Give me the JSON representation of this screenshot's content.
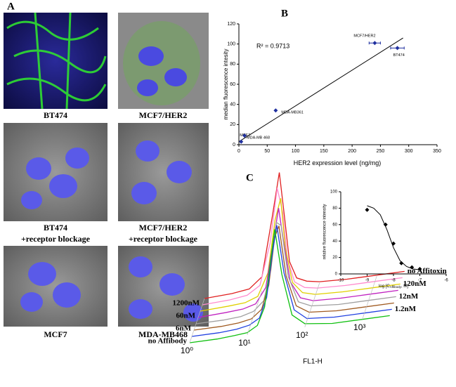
{
  "panel_labels": [
    "A",
    "B",
    "C"
  ],
  "images": [
    {
      "caption": [
        "BT474"
      ]
    },
    {
      "caption": [
        "MCF7/HER2"
      ]
    },
    {
      "caption": [
        "BT474",
        "+receptor blockage"
      ]
    },
    {
      "caption": [
        "MCF7/HER2",
        "+receptor blockage"
      ]
    },
    {
      "caption": [
        "MCF7"
      ]
    },
    {
      "caption": [
        "MDA-MB468"
      ]
    }
  ],
  "chart_data": [
    {
      "type": "scatter",
      "xlabel": "HER2 expression level (ng/mg)",
      "ylabel": "median fluorescence intesity",
      "annotation": "R² = 0.9713",
      "xlim": [
        0,
        350
      ],
      "xticks": [
        0,
        50,
        100,
        150,
        200,
        250,
        300,
        350
      ],
      "ylim": [
        0,
        120
      ],
      "yticks": [
        0,
        20,
        40,
        60,
        80,
        100,
        120
      ],
      "series": [
        {
          "color": "#1f2f9f",
          "x": [
            4,
            10,
            65,
            240,
            280
          ],
          "values": [
            3,
            9,
            34,
            101,
            96
          ],
          "xerr": [
            null,
            null,
            null,
            10,
            12
          ],
          "point_labels": [
            "MCF7",
            "MDA-MB 468",
            "MDA-MB361",
            "MCF7/HER2",
            "BT474"
          ]
        }
      ],
      "fit": {
        "color": "#000000",
        "x": [
          0,
          290
        ],
        "values": [
          3,
          106
        ]
      }
    },
    {
      "type": "line",
      "xlabel": "FL1-H",
      "xlog": true,
      "xlim": [
        1,
        4000
      ],
      "xticks": [
        {
          "value": 1,
          "label": "10⁰"
        },
        {
          "value": 10,
          "label": "10¹"
        },
        {
          "value": 100,
          "label": "10²"
        },
        {
          "value": 1000,
          "label": "10³"
        }
      ],
      "ylim": [
        0,
        100
      ],
      "x": [
        1,
        3,
        6,
        10,
        15,
        20,
        25,
        30,
        40,
        60,
        100,
        300,
        1000,
        3000
      ],
      "series": [
        {
          "name": "no Affitoxin",
          "color": "#e02020",
          "values": [
            0,
            1,
            3,
            12,
            62,
            100,
            58,
            22,
            7,
            3,
            1,
            0,
            0,
            0
          ]
        },
        {
          "name": "1200nM",
          "color": "#ff8ccf",
          "values": [
            0,
            1,
            3,
            10,
            45,
            92,
            70,
            30,
            9,
            3,
            1,
            0,
            0,
            0
          ]
        },
        {
          "name": "120nM",
          "color": "#e0d000",
          "values": [
            0,
            1,
            2,
            6,
            25,
            70,
            88,
            45,
            14,
            4,
            1,
            0,
            0,
            0
          ]
        },
        {
          "name": "60nM",
          "color": "#c020c0",
          "values": [
            0,
            1,
            2,
            5,
            18,
            55,
            85,
            58,
            20,
            5,
            1,
            0,
            0,
            0
          ]
        },
        {
          "name": "12nM",
          "color": "#a0a0a0",
          "values": [
            0,
            0,
            1,
            4,
            12,
            38,
            78,
            75,
            30,
            7,
            2,
            0,
            0,
            0
          ]
        },
        {
          "name": "6nM",
          "color": "#a05a20",
          "values": [
            0,
            0,
            1,
            3,
            10,
            30,
            70,
            80,
            36,
            9,
            2,
            0,
            0,
            0
          ]
        },
        {
          "name": "1.2nM",
          "color": "#2040e0",
          "values": [
            0,
            0,
            1,
            3,
            8,
            25,
            62,
            86,
            44,
            11,
            2,
            0,
            0,
            0
          ]
        },
        {
          "name": "no Affibody",
          "color": "#10c010",
          "values": [
            0,
            0,
            1,
            2,
            7,
            22,
            58,
            88,
            48,
            12,
            3,
            0,
            0,
            0
          ]
        }
      ]
    },
    {
      "type": "scatter",
      "xlabel": "log [C",
      "xlabel_sub": "Affibody",
      "xlabel_end": ", M]",
      "ylabel": "relative fluorescence intensity",
      "xlim": [
        -10,
        -6
      ],
      "xticks": [
        -10,
        -9,
        -8,
        -7,
        -6
      ],
      "ylim": [
        0,
        100
      ],
      "yticks": [
        0,
        20,
        40,
        60,
        80,
        100
      ],
      "series": [
        {
          "color": "#000000",
          "x": [
            -9,
            -8.3,
            -8,
            -7.7,
            -7.3,
            -7
          ],
          "values": [
            78,
            60,
            37,
            13,
            8,
            6
          ]
        }
      ],
      "fit": {
        "color": "#000000",
        "x": [
          -9,
          -8.75,
          -8.5,
          -8.25,
          -8,
          -7.75,
          -7.5,
          -7.25,
          -7
        ],
        "values": [
          83,
          80,
          72,
          54,
          32,
          16,
          9,
          6,
          5
        ]
      }
    }
  ]
}
